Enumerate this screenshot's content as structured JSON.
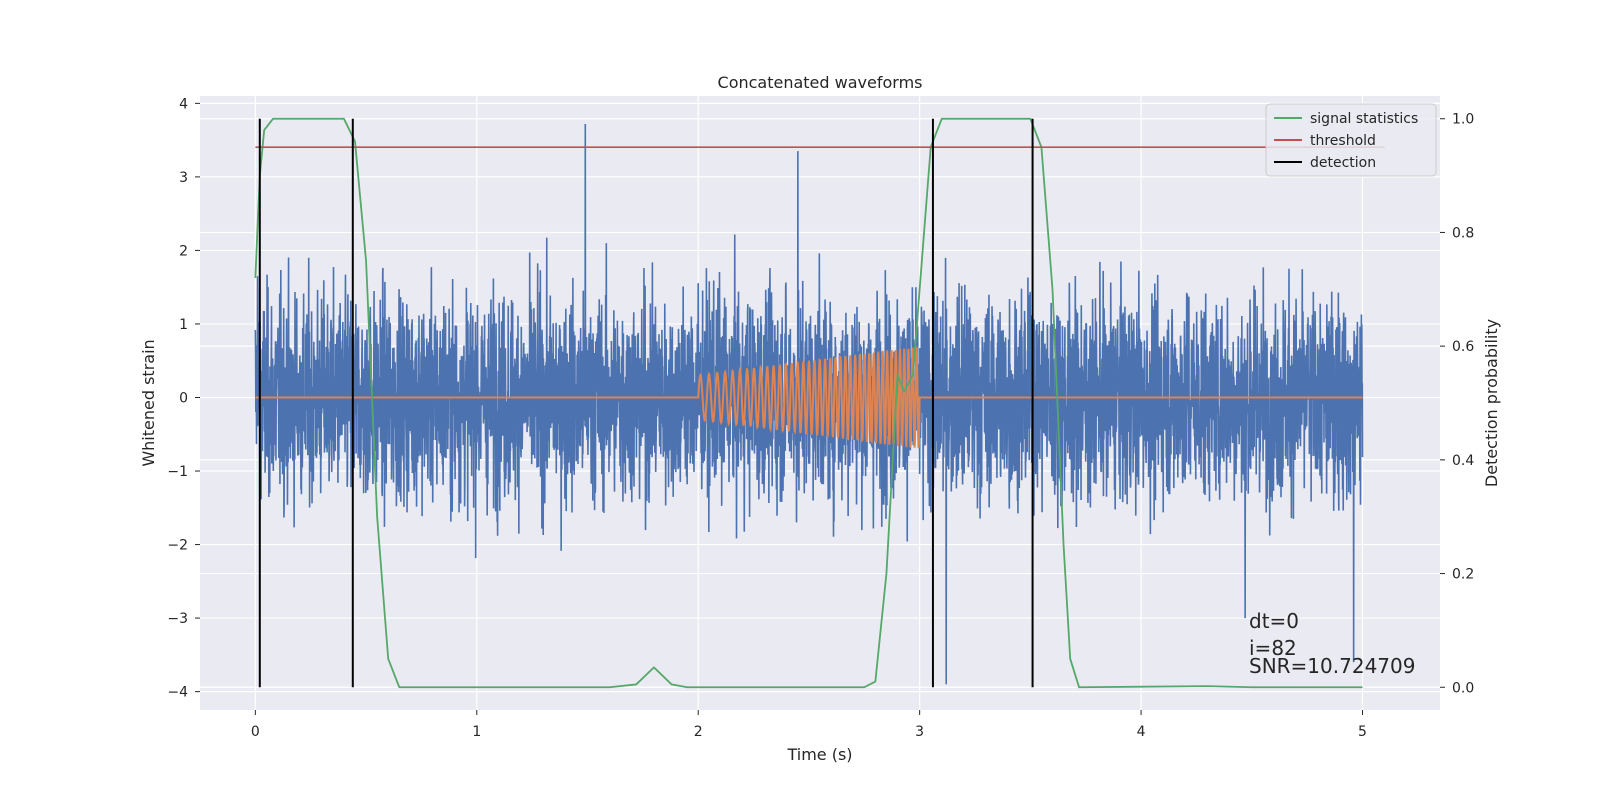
{
  "chart_data": {
    "type": "line",
    "title": "Concatenated waveforms",
    "xlabel": "Time (s)",
    "ylabel": "Whitened strain",
    "y2label": "Detection probability",
    "xlim": [
      -0.25,
      5.35
    ],
    "ylim": [
      -4.25,
      4.1
    ],
    "y2lim": [
      -0.04,
      1.04
    ],
    "xticks": [
      "0",
      "1",
      "2",
      "3",
      "4",
      "5"
    ],
    "yticks": [
      "4",
      "3",
      "2",
      "1",
      "0",
      "−1",
      "−2",
      "−3",
      "−4"
    ],
    "y2ticks": [
      "1.0",
      "0.8",
      "0.6",
      "0.4",
      "0.2",
      "0.0"
    ],
    "grid": true,
    "legend_position": "top-right",
    "legend": [
      {
        "label": "signal statistics",
        "color": "#55a868"
      },
      {
        "label": "threshold",
        "color": "#c44e52"
      },
      {
        "label": "detection",
        "color": "#000000"
      }
    ],
    "series": [
      {
        "kind": "noise",
        "color": "#4c72b0",
        "x_range": [
          0,
          5
        ],
        "amplitude_scale": 0.75,
        "peaks": [
          [
            0.01,
            1.65
          ],
          [
            1.49,
            3.72
          ],
          [
            2.45,
            3.35
          ],
          [
            3.12,
            -3.9
          ],
          [
            4.47,
            -3.0
          ],
          [
            4.96,
            -3.6
          ]
        ]
      },
      {
        "kind": "injected signal",
        "color": "#dd8452",
        "x_range": [
          0,
          5
        ],
        "chirp_start": 2.0,
        "chirp_end": 3.0,
        "amplitude_start": 0.3,
        "amplitude_end": 0.7
      },
      {
        "name": "signal statistics",
        "axis": "right",
        "color": "#55a868",
        "points": [
          [
            0.0,
            0.72
          ],
          [
            0.02,
            0.9
          ],
          [
            0.04,
            0.98
          ],
          [
            0.08,
            1.0
          ],
          [
            0.4,
            1.0
          ],
          [
            0.45,
            0.96
          ],
          [
            0.5,
            0.75
          ],
          [
            0.55,
            0.3
          ],
          [
            0.6,
            0.05
          ],
          [
            0.65,
            0.0
          ],
          [
            1.6,
            0.0
          ],
          [
            1.72,
            0.005
          ],
          [
            1.8,
            0.035
          ],
          [
            1.88,
            0.005
          ],
          [
            1.95,
            0.0
          ],
          [
            2.75,
            0.0
          ],
          [
            2.8,
            0.01
          ],
          [
            2.85,
            0.2
          ],
          [
            2.9,
            0.55
          ],
          [
            2.93,
            0.52
          ],
          [
            2.97,
            0.55
          ],
          [
            3.05,
            0.95
          ],
          [
            3.1,
            1.0
          ],
          [
            3.5,
            1.0
          ],
          [
            3.55,
            0.95
          ],
          [
            3.6,
            0.7
          ],
          [
            3.65,
            0.25
          ],
          [
            3.68,
            0.05
          ],
          [
            3.72,
            0.0
          ],
          [
            4.3,
            0.002
          ],
          [
            4.5,
            0.0
          ],
          [
            5.0,
            0.0
          ]
        ]
      },
      {
        "name": "threshold",
        "axis": "right",
        "color": "#c44e52",
        "x": [
          0.0,
          5.1
        ],
        "y": [
          0.95,
          0.95
        ]
      },
      {
        "name": "detection",
        "axis": "right",
        "color": "#000000",
        "x": [
          0.02,
          0.44,
          3.06,
          3.51
        ],
        "y_range": [
          0.0,
          1.0
        ]
      }
    ],
    "annotations": [
      "dt=0",
      "i=82",
      "SNR=10.724709"
    ]
  }
}
